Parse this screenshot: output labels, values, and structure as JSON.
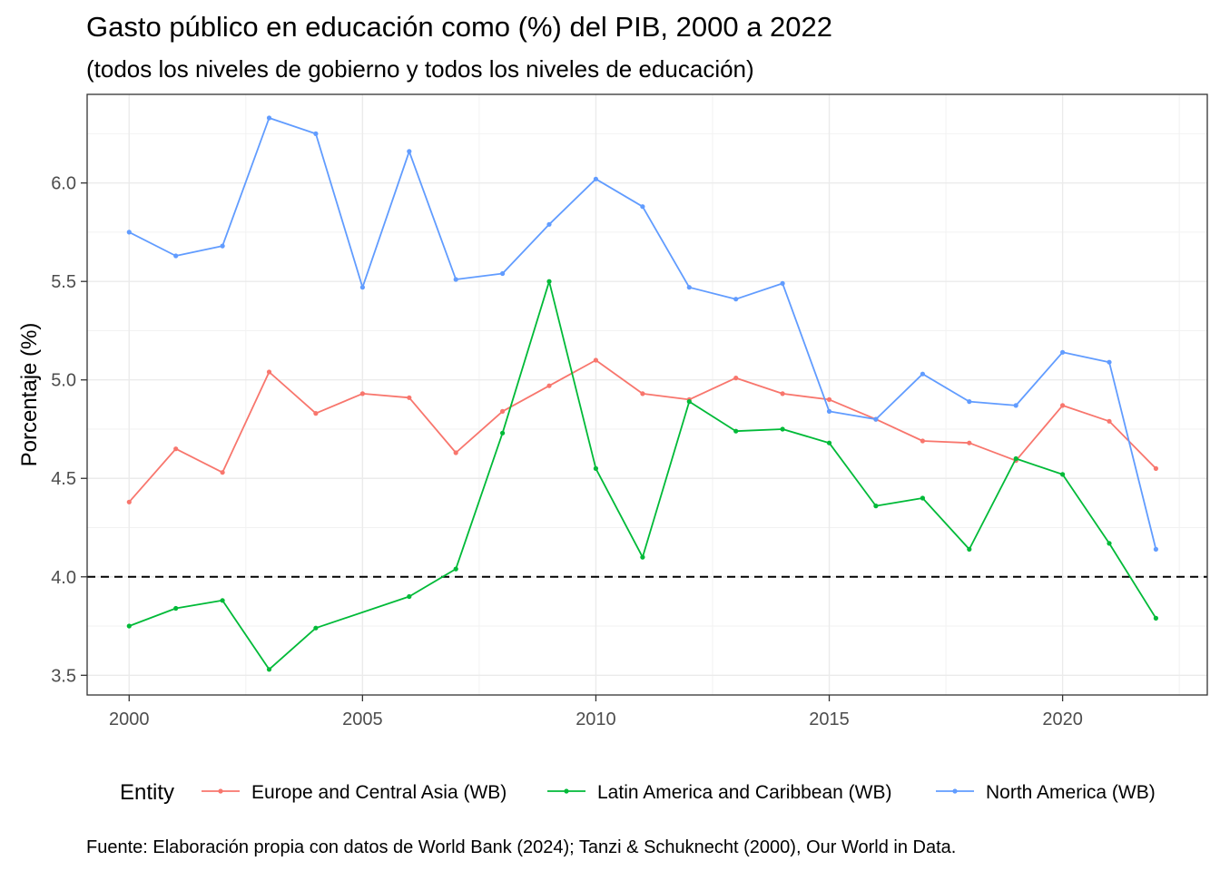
{
  "chart_data": {
    "type": "line",
    "title": "Gasto público en educación como (%) del PIB, 2000 a 2022",
    "subtitle": "(todos los niveles de gobierno y todos los niveles de educación)",
    "xlabel": "",
    "ylabel": "Porcentaje (%)",
    "xlim": [
      1999.1,
      2023.1
    ],
    "ylim": [
      3.4,
      6.45
    ],
    "x_ticks": [
      2000,
      2005,
      2010,
      2015,
      2020
    ],
    "y_ticks": [
      3.5,
      4.0,
      4.5,
      5.0,
      5.5,
      6.0
    ],
    "y_tick_labels": [
      "3.5",
      "4.0",
      "4.5",
      "5.0",
      "5.5",
      "6.0"
    ],
    "reference_line": {
      "y": 4.0,
      "style": "dashed"
    },
    "grid": true,
    "legend": {
      "title": "Entity",
      "position": "bottom"
    },
    "x": [
      2000,
      2001,
      2002,
      2003,
      2004,
      2005,
      2006,
      2007,
      2008,
      2009,
      2010,
      2011,
      2012,
      2013,
      2014,
      2015,
      2016,
      2017,
      2018,
      2019,
      2020,
      2021,
      2022
    ],
    "series": [
      {
        "name": "Europe and Central Asia (WB)",
        "color": "#F8766D",
        "values": [
          4.38,
          4.65,
          4.53,
          5.04,
          4.83,
          4.93,
          4.91,
          4.63,
          4.84,
          4.97,
          5.1,
          4.93,
          4.9,
          5.01,
          4.93,
          4.9,
          4.8,
          4.69,
          4.68,
          4.59,
          4.87,
          4.79,
          4.55
        ]
      },
      {
        "name": "Latin America and Caribbean (WB)",
        "color": "#00BA38",
        "values": [
          3.75,
          3.84,
          3.88,
          3.53,
          3.74,
          null,
          3.9,
          4.04,
          4.73,
          5.5,
          4.55,
          4.1,
          4.89,
          4.74,
          4.75,
          4.68,
          4.36,
          4.4,
          4.14,
          4.6,
          4.52,
          4.17,
          3.79
        ]
      },
      {
        "name": "North America (WB)",
        "color": "#619CFF",
        "values": [
          5.75,
          5.63,
          5.68,
          6.33,
          6.25,
          5.47,
          6.16,
          5.51,
          5.54,
          5.79,
          6.02,
          5.88,
          5.47,
          5.41,
          5.49,
          4.84,
          4.8,
          5.03,
          4.89,
          4.87,
          5.14,
          5.09,
          4.14
        ]
      }
    ],
    "caption": "Fuente: Elaboración propia con datos de World Bank (2024); Tanzi & Schuknecht (2000), Our World in Data."
  }
}
